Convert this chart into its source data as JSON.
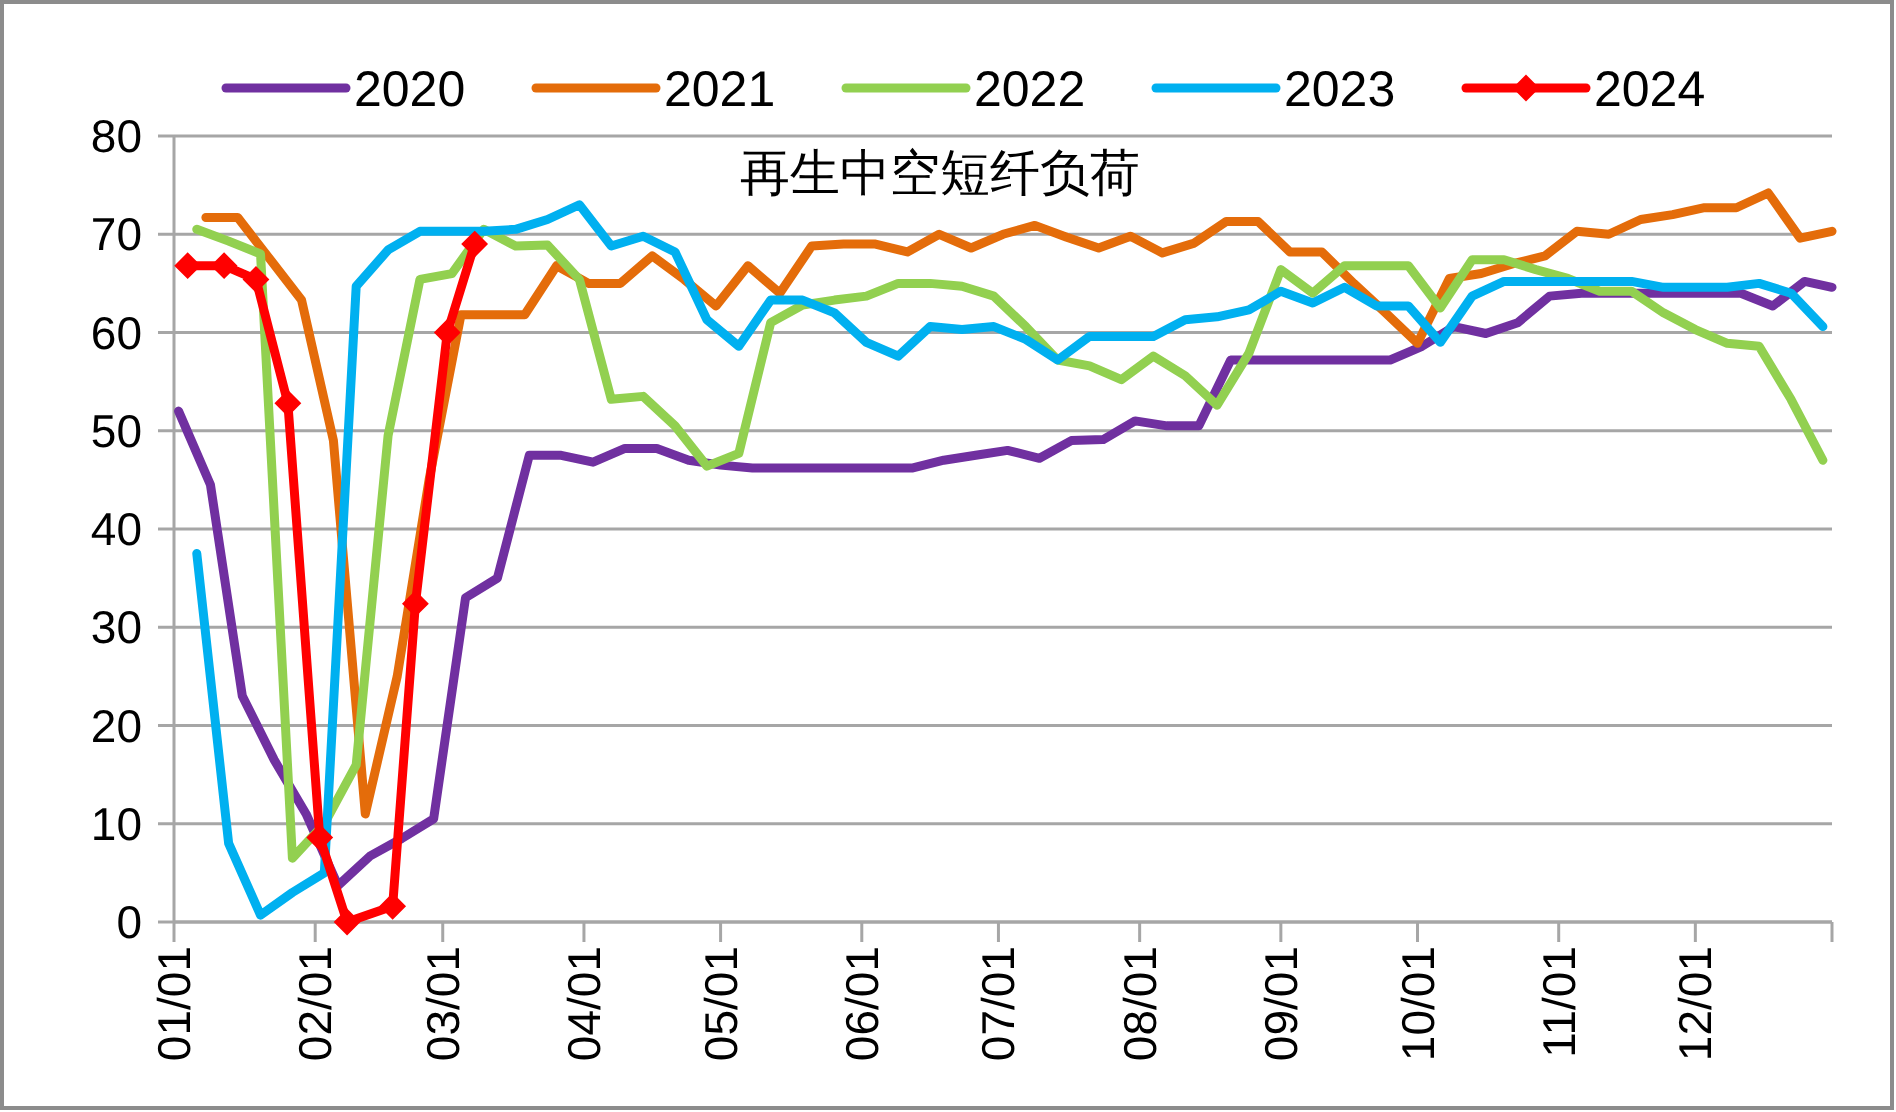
{
  "chart_data": {
    "type": "line",
    "title": "再生中空短纤负荷",
    "xlim": [
      "--01-01",
      "--12-31"
    ],
    "xticks": [
      {
        "value": "--01-01",
        "label": "01/01"
      },
      {
        "value": "--02-01",
        "label": "02/01"
      },
      {
        "value": "--03-01",
        "label": "03/01"
      },
      {
        "value": "--04-01",
        "label": "04/01"
      },
      {
        "value": "--05-01",
        "label": "05/01"
      },
      {
        "value": "--06-01",
        "label": "06/01"
      },
      {
        "value": "--07-01",
        "label": "07/01"
      },
      {
        "value": "--08-01",
        "label": "08/01"
      },
      {
        "value": "--09-01",
        "label": "09/01"
      },
      {
        "value": "--10-01",
        "label": "10/01"
      },
      {
        "value": "--11-01",
        "label": "11/01"
      },
      {
        "value": "--12-01",
        "label": "12/01"
      },
      {
        "value": "--12-31",
        "label": null
      }
    ],
    "ylim": [
      0,
      80
    ],
    "yticks": [
      0,
      10,
      20,
      30,
      40,
      50,
      60,
      70,
      80
    ],
    "grid": "y",
    "legend": "top",
    "marker": "none",
    "line_style": "solid",
    "series": [
      {
        "name": "2020",
        "color": "#7030a0",
        "x": [
          "--01-02",
          "--01-09",
          "--01-16",
          "--01-23",
          "--01-30",
          "--02-06",
          "--02-13",
          "--02-20",
          "--02-27",
          "--03-06",
          "--03-13",
          "--03-20",
          "--03-27",
          "--04-03",
          "--04-10",
          "--04-17",
          "--04-24",
          "--05-01",
          "--05-08",
          "--05-15",
          "--05-22",
          "--05-29",
          "--06-05",
          "--06-12",
          "--06-19",
          "--06-26",
          "--07-03",
          "--07-10",
          "--07-17",
          "--07-24",
          "--07-31",
          "--08-07",
          "--08-14",
          "--08-21",
          "--08-28",
          "--09-04",
          "--09-11",
          "--09-18",
          "--09-25",
          "--10-02",
          "--10-09",
          "--10-16",
          "--10-23",
          "--10-30",
          "--11-06",
          "--11-13",
          "--11-20",
          "--11-27",
          "--12-04",
          "--12-11",
          "--12-18",
          "--12-25",
          "--12-31"
        ],
        "values": [
          52,
          44.5,
          23,
          16.5,
          11,
          3.7,
          6.7,
          8.5,
          10.5,
          33,
          35,
          47.5,
          47.5,
          46.8,
          48.2,
          48.2,
          47,
          46.5,
          46.2,
          46.2,
          46.2,
          46.2,
          46.2,
          46.2,
          47,
          47.5,
          48,
          47.2,
          49,
          49.1,
          51,
          50.5,
          50.5,
          57.2,
          57.2,
          57.2,
          57.2,
          57.2,
          57.2,
          58.6,
          60.6,
          59.9,
          61,
          63.7,
          64,
          64,
          64,
          64,
          64,
          64,
          62.7,
          65.2,
          64.6
        ]
      },
      {
        "name": "2021",
        "color": "#e46c0a",
        "x": [
          "--01-08",
          "--01-15",
          "--01-22",
          "--01-29",
          "--02-05",
          "--02-12",
          "--02-19",
          "--02-26",
          "--03-05",
          "--03-12",
          "--03-19",
          "--03-26",
          "--04-02",
          "--04-09",
          "--04-16",
          "--04-23",
          "--04-30",
          "--05-07",
          "--05-14",
          "--05-21",
          "--05-28",
          "--06-04",
          "--06-11",
          "--06-18",
          "--06-25",
          "--07-02",
          "--07-09",
          "--07-16",
          "--07-23",
          "--07-30",
          "--08-06",
          "--08-13",
          "--08-20",
          "--08-27",
          "--09-03",
          "--09-10",
          "--09-17",
          "--09-24",
          "--10-01",
          "--10-08",
          "--10-15",
          "--10-22",
          "--10-29",
          "--11-05",
          "--11-12",
          "--11-19",
          "--11-26",
          "--12-03",
          "--12-10",
          "--12-17",
          "--12-24",
          "--12-31"
        ],
        "values": [
          71.7,
          71.7,
          67.5,
          63.3,
          49,
          11,
          25,
          45,
          61.8,
          61.8,
          61.8,
          66.8,
          65,
          65,
          67.8,
          65.4,
          62.7,
          66.8,
          64,
          68.8,
          69,
          69,
          68.2,
          70,
          68.6,
          70,
          70.9,
          69.7,
          68.6,
          69.8,
          68.1,
          69.1,
          71.3,
          71.3,
          68.2,
          68.2,
          65,
          62,
          58.9,
          65.5,
          66,
          67,
          67.8,
          70.3,
          70,
          71.5,
          72,
          72.7,
          72.7,
          74.2,
          69.6,
          70.3
        ]
      },
      {
        "name": "2022",
        "color": "#92d050",
        "x": [
          "--01-06",
          "--01-13",
          "--01-20",
          "--01-27",
          "--02-03",
          "--02-10",
          "--02-17",
          "--02-24",
          "--03-03",
          "--03-10",
          "--03-17",
          "--03-24",
          "--03-31",
          "--04-07",
          "--04-14",
          "--04-21",
          "--04-28",
          "--05-05",
          "--05-12",
          "--05-19",
          "--05-26",
          "--06-02",
          "--06-09",
          "--06-16",
          "--06-23",
          "--06-30",
          "--07-07",
          "--07-14",
          "--07-21",
          "--07-28",
          "--08-04",
          "--08-11",
          "--08-18",
          "--08-25",
          "--09-01",
          "--09-08",
          "--09-15",
          "--09-22",
          "--09-29",
          "--10-06",
          "--10-13",
          "--10-20",
          "--10-27",
          "--11-03",
          "--11-10",
          "--11-17",
          "--11-24",
          "--12-01",
          "--12-08",
          "--12-15",
          "--12-22",
          "--12-29"
        ],
        "values": [
          70.5,
          69.3,
          68,
          6.5,
          10,
          16,
          49.5,
          65.4,
          66,
          70.5,
          68.8,
          68.9,
          65.4,
          53.2,
          53.5,
          50.5,
          46.4,
          47.7,
          61,
          62.8,
          63.3,
          63.7,
          65,
          65,
          64.7,
          63.7,
          60.6,
          57.2,
          56.6,
          55.2,
          57.6,
          55.6,
          52.6,
          57.9,
          66.4,
          64,
          66.8,
          66.8,
          66.8,
          62.5,
          67.4,
          67.4,
          66.4,
          65.5,
          64.2,
          64.2,
          62,
          60.3,
          58.9,
          58.6,
          53.2,
          47
        ]
      },
      {
        "name": "2023",
        "color": "#00b0f0",
        "x": [
          "--01-06",
          "--01-13",
          "--01-20",
          "--01-27",
          "--02-03",
          "--02-10",
          "--02-17",
          "--02-24",
          "--03-03",
          "--03-10",
          "--03-17",
          "--03-24",
          "--03-31",
          "--04-07",
          "--04-14",
          "--04-21",
          "--04-28",
          "--05-05",
          "--05-12",
          "--05-19",
          "--05-26",
          "--06-02",
          "--06-09",
          "--06-16",
          "--06-23",
          "--06-30",
          "--07-07",
          "--07-14",
          "--07-21",
          "--07-28",
          "--08-04",
          "--08-11",
          "--08-18",
          "--08-25",
          "--09-01",
          "--09-08",
          "--09-15",
          "--09-22",
          "--09-29",
          "--10-06",
          "--10-13",
          "--10-20",
          "--10-27",
          "--11-03",
          "--11-10",
          "--11-17",
          "--11-24",
          "--12-01",
          "--12-08",
          "--12-15",
          "--12-22",
          "--12-29"
        ],
        "values": [
          37.5,
          8,
          0.7,
          3,
          5,
          64.7,
          68.4,
          70.3,
          70.3,
          70.3,
          70.5,
          71.5,
          73,
          68.8,
          69.8,
          68.2,
          61.3,
          58.6,
          63.3,
          63.3,
          62,
          59,
          57.6,
          60.6,
          60.3,
          60.6,
          59.3,
          57.2,
          59.6,
          59.6,
          59.6,
          61.3,
          61.6,
          62.3,
          64.2,
          63,
          64.6,
          62.7,
          62.7,
          59,
          63.7,
          65.2,
          65.2,
          65.2,
          65.2,
          65.2,
          64.6,
          64.6,
          64.6,
          65,
          64,
          60.6
        ]
      },
      {
        "name": "2024",
        "color": "#ff0000",
        "marker": "diamond",
        "x": [
          "--01-04",
          "--01-12",
          "--01-19",
          "--01-26",
          "--02-02",
          "--02-08",
          "--02-18",
          "--02-23",
          "--03-02",
          "--03-08"
        ],
        "values": [
          66.8,
          66.8,
          65.4,
          52.8,
          8.6,
          0,
          1.6,
          32.4,
          60,
          69
        ]
      }
    ]
  }
}
